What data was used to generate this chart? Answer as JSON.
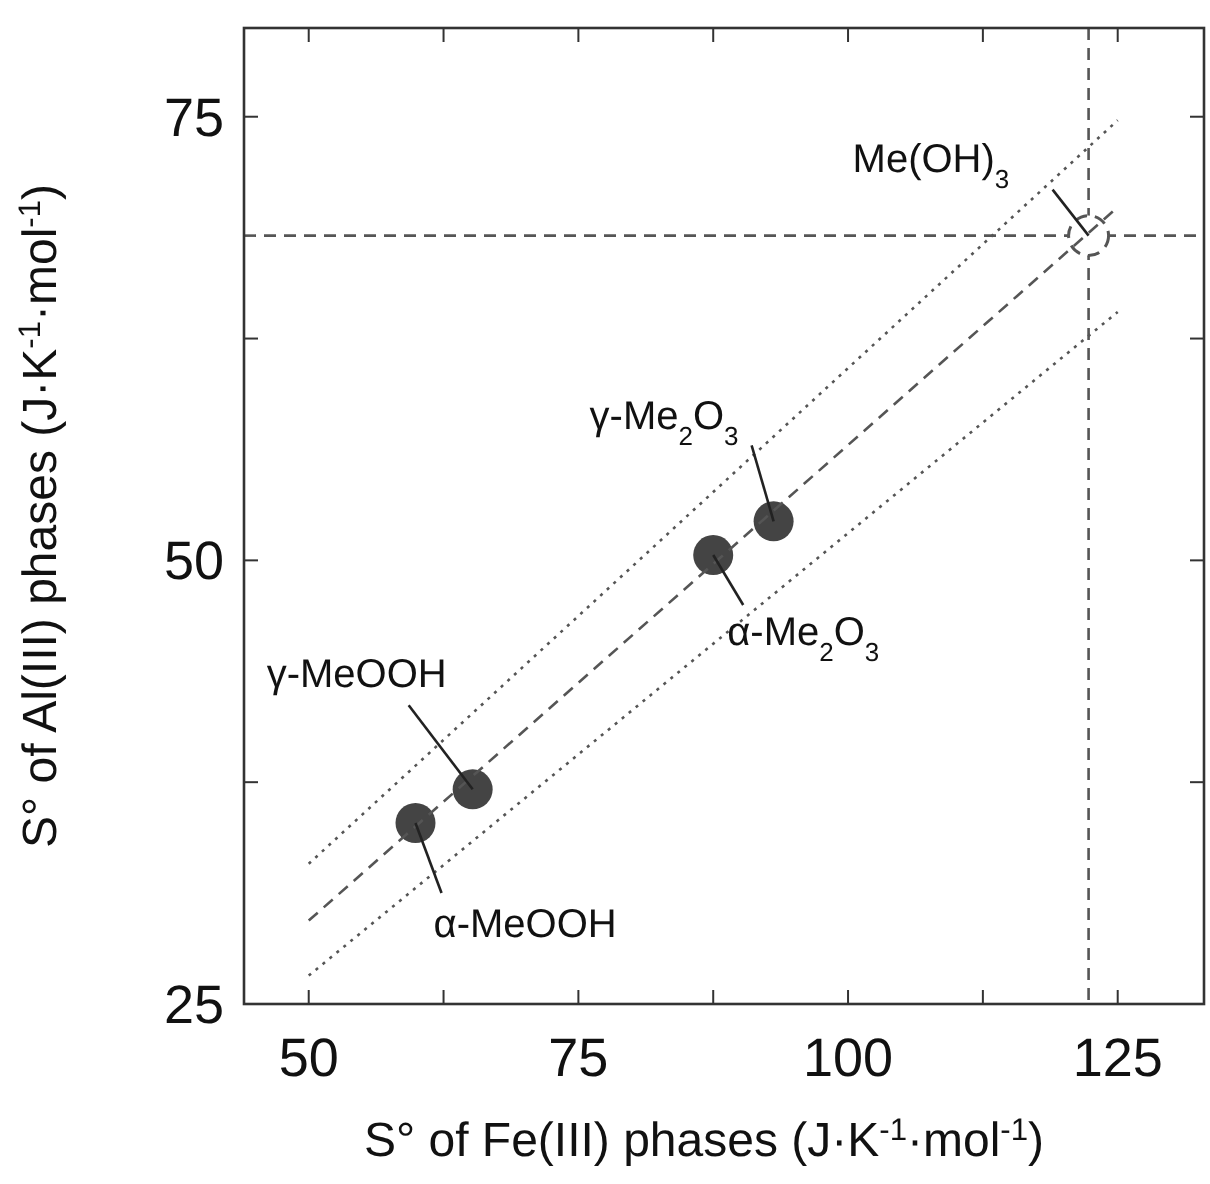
{
  "chart_data": {
    "type": "scatter",
    "xlabel": "S° of Fe(III) phases (J·K$^{-1}$·mol$^{-1}$)",
    "ylabel": "S° of Al(III) phases (J·K$^{-1}$·mol$^{-1}$)",
    "xlim": [
      44,
      133
    ],
    "ylim": [
      25,
      80
    ],
    "xticks": [
      50,
      {
        "value": 62.5,
        "label": null
      },
      75,
      {
        "value": 87.5,
        "label": null
      },
      100,
      {
        "value": 112.5,
        "label": null
      },
      125
    ],
    "yticks": [
      25,
      {
        "value": 37.5,
        "label": null
      },
      50,
      {
        "value": 62.5,
        "label": null
      },
      75
    ],
    "grid": false,
    "series": [
      {
        "color": "#444444",
        "marker": "circle",
        "x": [
          59.9,
          65.2,
          87.5,
          93.1
        ],
        "values": [
          35.2,
          37.1,
          50.3,
          52.2
        ]
      },
      {
        "color": "#555555",
        "marker": "circle",
        "line_style": "dashed",
        "x": [
          122.3
        ],
        "values": [
          68.3
        ]
      },
      {
        "type": "line",
        "color": "#555555",
        "marker": "none",
        "line_style": "dashed",
        "x": [
          50,
          125
        ],
        "values": [
          29.7,
          69.9
        ]
      },
      {
        "type": "line",
        "color": "#555555",
        "marker": "none",
        "line_style": "dotted",
        "x": [
          50,
          125
        ],
        "values": [
          26.6,
          64.0
        ]
      },
      {
        "type": "line",
        "color": "#555555",
        "marker": "none",
        "line_style": "dotted",
        "x": [
          50,
          125
        ],
        "values": [
          32.9,
          74.8
        ]
      }
    ],
    "ref_lines": [
      {
        "axis": "y",
        "value": 68.3,
        "color": "#555555",
        "line_style": "dashed"
      },
      {
        "axis": "x",
        "value": 122.3,
        "color": "#555555",
        "line_style": "dashed"
      }
    ],
    "annotations": [
      {
        "text": "α-MeOOH",
        "x": 59.9,
        "y": 35.2
      },
      {
        "text": "γ-MeOOH",
        "x": 65.2,
        "y": 37.1
      },
      {
        "text": "α-Me$_{2}$O$_{3}$",
        "x": 87.5,
        "y": 50.3
      },
      {
        "text": "γ-Me$_{2}$O$_{3}$",
        "x": 93.1,
        "y": 52.2
      },
      {
        "text": "Me(OH)$_{3}$",
        "x": 122.3,
        "y": 68.3
      }
    ]
  }
}
